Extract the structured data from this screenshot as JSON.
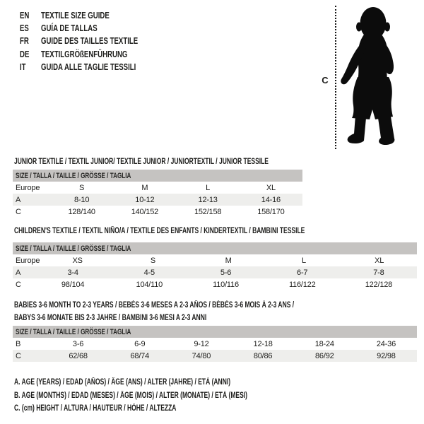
{
  "colors": {
    "background": "#ffffff",
    "text": "#1d1d1b",
    "header_bar": "#c5c3c1",
    "row_stripe": "#eeeeec",
    "silhouette": "#0c0c0c"
  },
  "languages": [
    {
      "code": "EN",
      "title": "TEXTILE SIZE GUIDE"
    },
    {
      "code": "ES",
      "title": "GUÍA DE TALLAS"
    },
    {
      "code": "FR",
      "title": "GUIDE DES TAILLES TEXTILE"
    },
    {
      "code": "DE",
      "title": "TEXTILGRÖßENFÜHRUNG"
    },
    {
      "code": "IT",
      "title": "GUIDA ALLE TAGLIE TESSILI"
    }
  ],
  "figure": {
    "label": "C",
    "icon": "toddler-silhouette"
  },
  "sections": [
    {
      "title_lines": [
        "JUNIOR TEXTILE / TEXTIL JUNIOR/ TEXTILE JUNIOR / JUNIORTEXTIL / JUNIOR TESSILE"
      ],
      "size_header": "SIZE / TALLA / TAILLE / GRÖSSE / TAGLIA",
      "rows": [
        {
          "label": "Europe",
          "values": [
            "S",
            "M",
            "L",
            "XL"
          ],
          "shaded": false
        },
        {
          "label": "A",
          "values": [
            "8-10",
            "10-12",
            "12-13",
            "14-16"
          ],
          "shaded": true
        },
        {
          "label": "C",
          "values": [
            "128/140",
            "140/152",
            "152/158",
            "158/170"
          ],
          "shaded": false
        }
      ]
    },
    {
      "title_lines": [
        "CHILDREN'S TEXTILE / TEXTIL NIÑO/A / TEXTILE DES ENFANTS / KINDERTEXTIL / BAMBINI TESSILE"
      ],
      "size_header": "SIZE / TALLA / TAILLE / GRÖSSE / TAGLIA",
      "rows": [
        {
          "label": "Europe",
          "values": [
            "XS",
            "S",
            "M",
            "L",
            "XL"
          ],
          "shaded": false
        },
        {
          "label": "A",
          "values": [
            "3-4",
            "4-5",
            "5-6",
            "6-7",
            "7-8"
          ],
          "shaded": true
        },
        {
          "label": "C",
          "values": [
            "98/104",
            "104/110",
            "110/116",
            "116/122",
            "122/128"
          ],
          "shaded": false
        }
      ]
    },
    {
      "title_lines": [
        "BABIES 3-6 MONTH TO 2-3 YEARS / BEBÉS 3-6 MESES A 2-3 AÑOS / BÉBÉS 3-6 MOIS À 2-3 ANS /",
        "BABYS 3-6 MONATE BIS 2-3 JAHRE / BAMBINI 3-6 MESI A 2-3 ANNI"
      ],
      "size_header": "SIZE / TALLA / TAILLE / GRÖSSE / TAGLIA",
      "rows": [
        {
          "label": "B",
          "values": [
            "3-6",
            "6-9",
            "9-12",
            "12-18",
            "18-24",
            "24-36"
          ],
          "shaded": false
        },
        {
          "label": "C",
          "values": [
            "62/68",
            "68/74",
            "74/80",
            "80/86",
            "86/92",
            "92/98"
          ],
          "shaded": true
        }
      ]
    }
  ],
  "legend": [
    "A. AGE (YEARS) / EDAD (AÑOS) / ÂGE (ANS) / ALTER (JAHRE) / ETÀ (ANNI)",
    "B. AGE (MONTHS) / EDAD (MESES) / ÂGE (MOIS) / ALTER (MONATE) / ETÀ (MESI)",
    "C. (cm) HEIGHT / ALTURA / HAUTEUR / HÖHE / ALTEZZA"
  ]
}
